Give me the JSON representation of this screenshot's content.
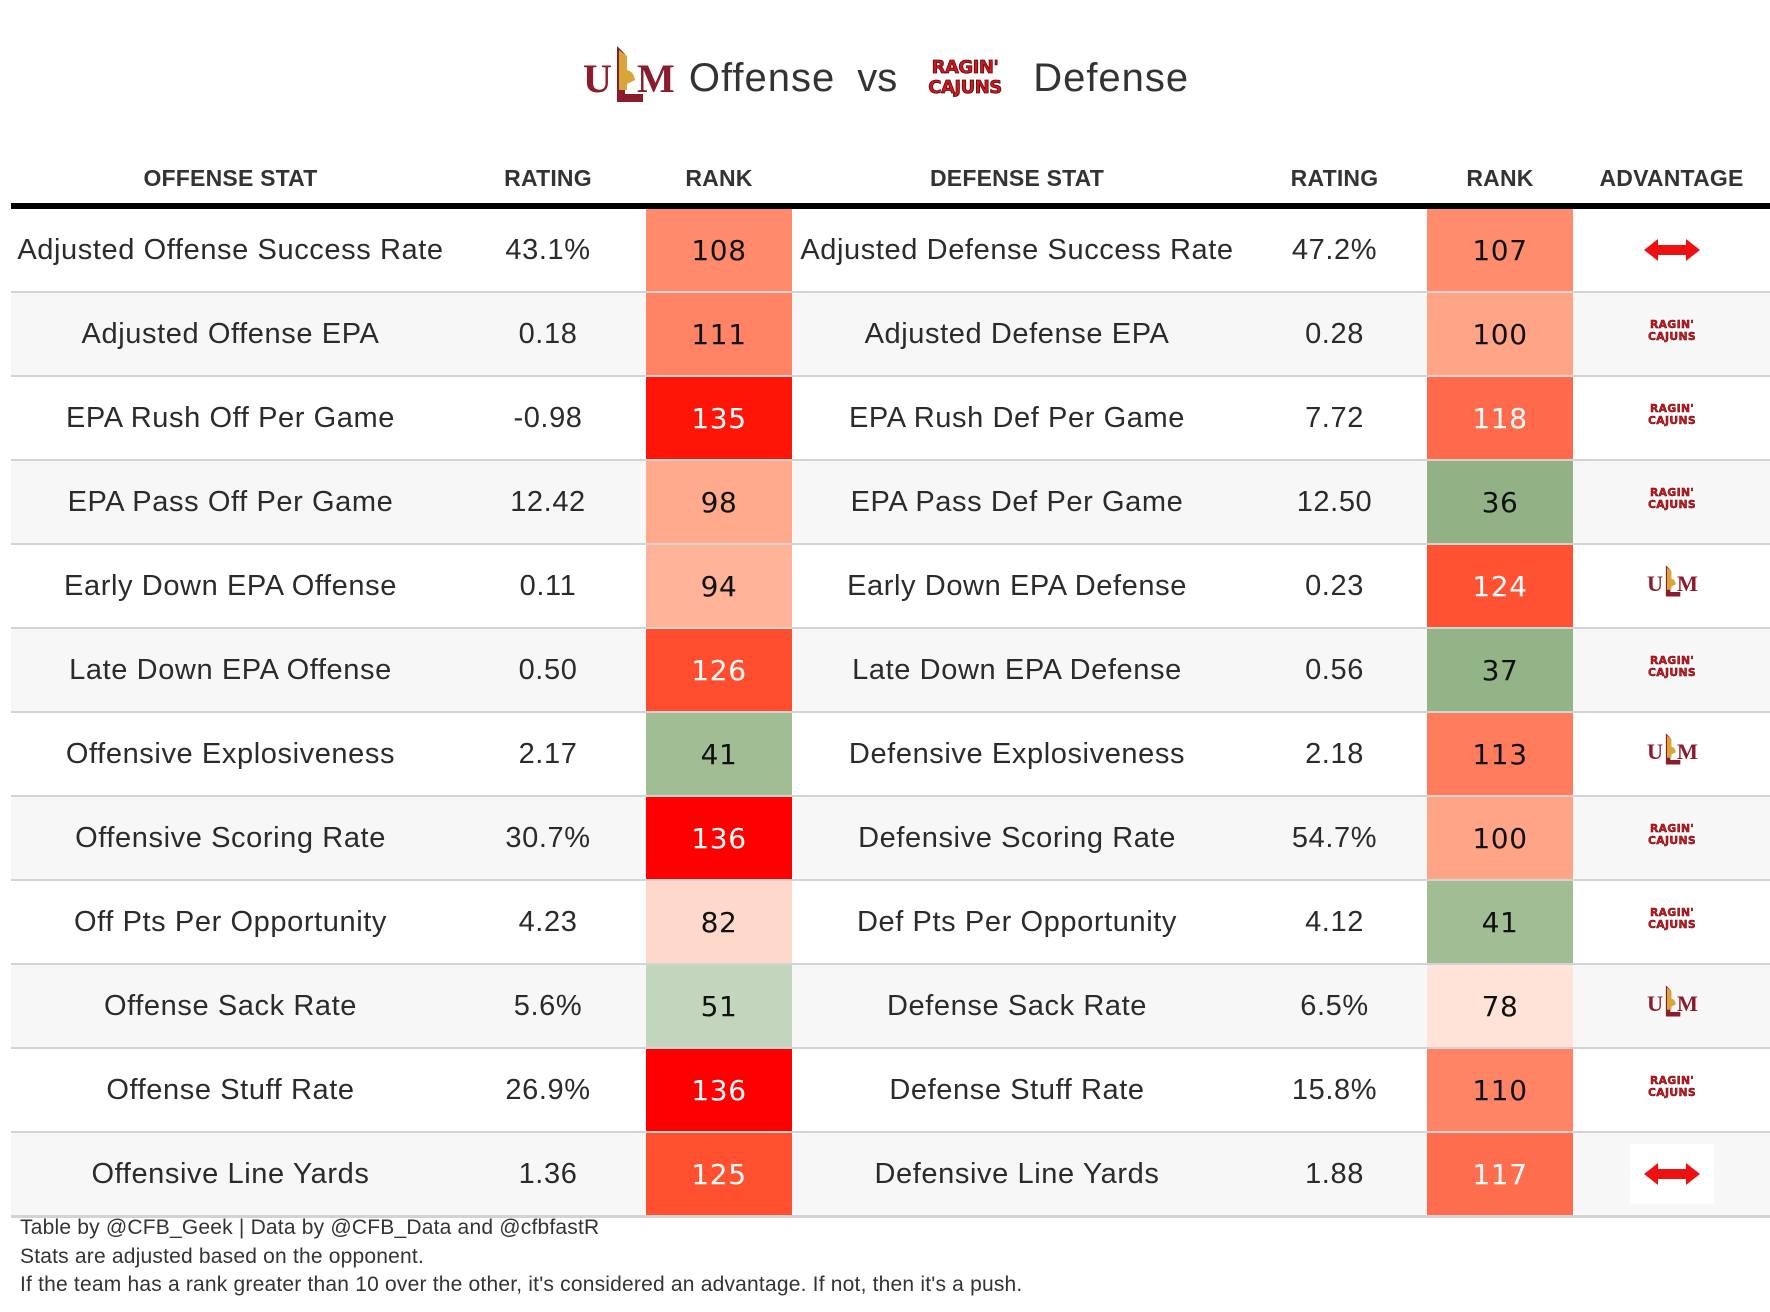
{
  "title": {
    "offense_team_logo": "ulm-logo",
    "offense_label": "Offense",
    "vs_label": "vs",
    "defense_team_logo": "ragin-cajuns-logo",
    "defense_label": "Defense"
  },
  "columns": {
    "offense_stat": "OFFENSE STAT",
    "offense_rating": "RATING",
    "offense_rank": "RANK",
    "defense_stat": "DEFENSE STAT",
    "defense_rating": "RATING",
    "defense_rank": "RANK",
    "advantage": "ADVANTAGE"
  },
  "colors": {
    "ulm_maroon": "#8a1c2b",
    "ulm_gold": "#d9a43a",
    "cajuns_red": "#ce181e",
    "push_arrow": "#ee1111",
    "row_alt": "#f7f7f7",
    "divider": "#d3d3d3"
  },
  "rows": [
    {
      "off_stat": "Adjusted Offense Success Rate",
      "off_rating": "43.1%",
      "off_rank": "108",
      "off_rank_color": "#ff8b6c",
      "off_rank_text": "#111111",
      "def_stat": "Adjusted Defense Success Rate",
      "def_rating": "47.2%",
      "def_rank": "107",
      "def_rank_color": "#ff8c6d",
      "def_rank_text": "#111111",
      "advantage": "push"
    },
    {
      "off_stat": "Adjusted Offense EPA",
      "off_rating": "0.18",
      "off_rank": "111",
      "off_rank_color": "#ff8465",
      "off_rank_text": "#111111",
      "def_stat": "Adjusted Defense EPA",
      "def_rating": "0.28",
      "def_rank": "100",
      "def_rank_color": "#ffa487",
      "def_rank_text": "#111111",
      "advantage": "defense"
    },
    {
      "off_stat": "EPA Rush Off Per Game",
      "off_rating": "-0.98",
      "off_rank": "135",
      "off_rank_color": "#ff1408",
      "off_rank_text": "#ffffff",
      "def_stat": "EPA Rush Def Per Game",
      "def_rating": "7.72",
      "def_rank": "118",
      "def_rank_color": "#ff6a4c",
      "def_rank_text": "#ffffff",
      "advantage": "defense"
    },
    {
      "off_stat": "EPA Pass Off Per Game",
      "off_rating": "12.42",
      "off_rank": "98",
      "off_rank_color": "#ffaa8d",
      "off_rank_text": "#111111",
      "def_stat": "EPA Pass Def Per Game",
      "def_rating": "12.50",
      "def_rank": "36",
      "def_rank_color": "#92b285",
      "def_rank_text": "#111111",
      "advantage": "defense"
    },
    {
      "off_stat": "Early Down EPA Offense",
      "off_rating": "0.11",
      "off_rank": "94",
      "off_rank_color": "#ffb49a",
      "off_rank_text": "#111111",
      "def_stat": "Early Down EPA Defense",
      "def_rating": "0.23",
      "def_rank": "124",
      "def_rank_color": "#ff5232",
      "def_rank_text": "#ffffff",
      "advantage": "offense"
    },
    {
      "off_stat": "Late Down EPA Offense",
      "off_rating": "0.50",
      "off_rank": "126",
      "off_rank_color": "#ff4e2f",
      "off_rank_text": "#ffffff",
      "def_stat": "Late Down EPA Defense",
      "def_rating": "0.56",
      "def_rank": "37",
      "def_rank_color": "#93b486",
      "def_rank_text": "#111111",
      "advantage": "defense"
    },
    {
      "off_stat": "Offensive Explosiveness",
      "off_rating": "2.17",
      "off_rank": "41",
      "off_rank_color": "#a1bd94",
      "off_rank_text": "#111111",
      "def_stat": "Defensive Explosiveness",
      "def_rating": "2.18",
      "def_rank": "113",
      "def_rank_color": "#ff7c5c",
      "def_rank_text": "#111111",
      "advantage": "offense"
    },
    {
      "off_stat": "Offensive Scoring Rate",
      "off_rating": "30.7%",
      "off_rank": "136",
      "off_rank_color": "#ff0000",
      "off_rank_text": "#ffffff",
      "def_stat": "Defensive Scoring Rate",
      "def_rating": "54.7%",
      "def_rank": "100",
      "def_rank_color": "#ffa487",
      "def_rank_text": "#111111",
      "advantage": "defense"
    },
    {
      "off_stat": "Off Pts Per Opportunity",
      "off_rating": "4.23",
      "off_rank": "82",
      "off_rank_color": "#ffd8cc",
      "off_rank_text": "#111111",
      "def_stat": "Def Pts Per Opportunity",
      "def_rating": "4.12",
      "def_rank": "41",
      "def_rank_color": "#a1bd94",
      "def_rank_text": "#111111",
      "advantage": "defense"
    },
    {
      "off_stat": "Offense Sack Rate",
      "off_rating": "5.6%",
      "off_rank": "51",
      "off_rank_color": "#c2d6be",
      "off_rank_text": "#111111",
      "def_stat": "Defense Sack Rate",
      "def_rating": "6.5%",
      "def_rank": "78",
      "def_rank_color": "#ffe3d8",
      "def_rank_text": "#111111",
      "advantage": "offense"
    },
    {
      "off_stat": "Offense Stuff Rate",
      "off_rating": "26.9%",
      "off_rank": "136",
      "off_rank_color": "#ff0000",
      "off_rank_text": "#ffffff",
      "def_stat": "Defense Stuff Rate",
      "def_rating": "15.8%",
      "def_rank": "110",
      "def_rank_color": "#ff8465",
      "def_rank_text": "#111111",
      "advantage": "defense"
    },
    {
      "off_stat": "Offensive Line Yards",
      "off_rating": "1.36",
      "off_rank": "125",
      "off_rank_color": "#ff5030",
      "off_rank_text": "#ffffff",
      "def_stat": "Defensive Line Yards",
      "def_rating": "1.88",
      "def_rank": "117",
      "def_rank_color": "#ff6d4f",
      "def_rank_text": "#ffffff",
      "advantage": "push"
    }
  ],
  "advantage_icons": {
    "push": "double-arrow-icon",
    "offense": "ulm-logo",
    "defense": "ragin-cajuns-logo"
  },
  "footer": {
    "line1": "Table by @CFB_Geek | Data by @CFB_Data and @cfbfastR",
    "line2": "Stats are adjusted based on the opponent.",
    "line3": "If the team has a rank greater than 10 over the other, it's considered an advantage. If not, then it's a push."
  }
}
